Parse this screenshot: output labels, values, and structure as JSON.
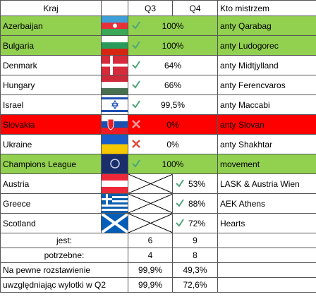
{
  "header": {
    "kraj": "Kraj",
    "q3": "Q3",
    "q4": "Q4",
    "kto": "Kto mistrzem"
  },
  "rows": [
    [
      "Azerbaijan",
      "100%",
      "anty Qarabag"
    ],
    [
      "Bulgaria",
      "100%",
      "anty Ludogorec"
    ],
    [
      "Denmark",
      "64%",
      "anty Midtjylland"
    ],
    [
      "Hungary",
      "66%",
      "anty Ferencvaros"
    ],
    [
      "Israel",
      "99,5%",
      "anty Maccabi"
    ],
    [
      "Slovakia",
      "0%",
      "anty Slovan"
    ],
    [
      "Ukraine",
      "0%",
      "anty Shakhtar"
    ],
    [
      "Champions League",
      "100%",
      "movement"
    ],
    [
      "Austria",
      "53%",
      "LASK & Austria Wien"
    ],
    [
      "Greece",
      "88%",
      "AEK Athens"
    ],
    [
      "Scotland",
      "72%",
      "Hearts"
    ]
  ],
  "summary": [
    [
      "jest:",
      6,
      9
    ],
    [
      "potrzebne:",
      4,
      8
    ],
    [
      "Na pewne rozstawienie",
      "99,9%",
      "49,3%"
    ],
    [
      "uwzględniając wylotki w Q2",
      "99,9%",
      "72,6%"
    ]
  ]
}
